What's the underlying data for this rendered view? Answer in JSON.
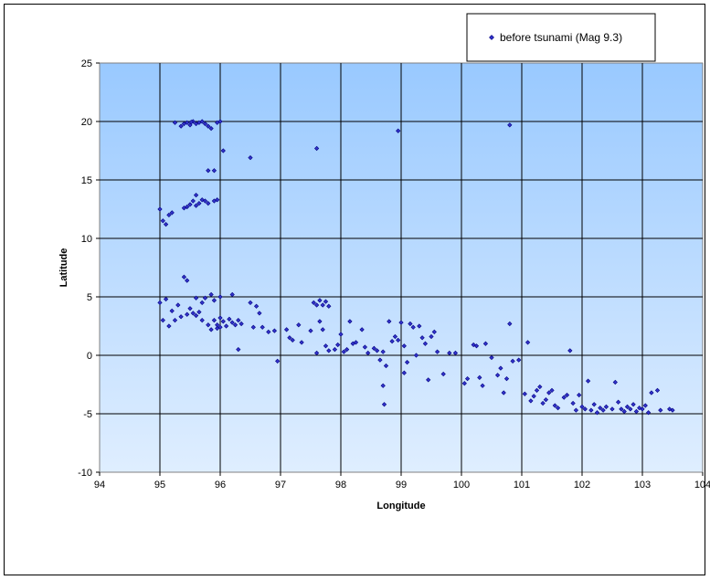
{
  "chart_data": {
    "type": "scatter",
    "title": "",
    "xlabel": "Longitude",
    "ylabel": "Latitude",
    "xlim": [
      94,
      104
    ],
    "ylim": [
      -10,
      25
    ],
    "x_ticks": [
      94,
      95,
      96,
      97,
      98,
      99,
      100,
      101,
      102,
      103,
      104
    ],
    "y_ticks": [
      -10,
      -5,
      0,
      5,
      10,
      15,
      20,
      25
    ],
    "grid": true,
    "legend_position": "top-right",
    "colors": {
      "plot_top": "#99c9ff",
      "plot_bottom": "#dfeeff",
      "marker_fill": "#3333cc",
      "marker_stroke": "#000080",
      "gridline": "#000000"
    },
    "series": [
      {
        "name": "before tsunami (Mag 9.3)",
        "marker": "diamond",
        "points": [
          [
            95.25,
            19.9
          ],
          [
            95.35,
            19.6
          ],
          [
            95.4,
            19.8
          ],
          [
            95.45,
            19.9
          ],
          [
            95.5,
            19.7
          ],
          [
            95.55,
            20.0
          ],
          [
            95.6,
            19.8
          ],
          [
            95.65,
            19.9
          ],
          [
            95.7,
            20.0
          ],
          [
            95.75,
            19.8
          ],
          [
            95.8,
            19.6
          ],
          [
            95.85,
            19.4
          ],
          [
            95.95,
            19.9
          ],
          [
            96.0,
            20.0
          ],
          [
            95.52,
            19.95
          ],
          [
            96.05,
            17.5
          ],
          [
            96.5,
            16.9
          ],
          [
            95.8,
            15.8
          ],
          [
            95.9,
            15.8
          ],
          [
            97.6,
            17.7
          ],
          [
            98.95,
            19.2
          ],
          [
            100.8,
            19.7
          ],
          [
            95.6,
            13.7
          ],
          [
            95.55,
            13.2
          ],
          [
            95.65,
            13.0
          ],
          [
            95.7,
            13.3
          ],
          [
            95.75,
            13.2
          ],
          [
            95.8,
            13.0
          ],
          [
            95.9,
            13.2
          ],
          [
            95.95,
            13.3
          ],
          [
            95.6,
            12.8
          ],
          [
            95.5,
            12.9
          ],
          [
            95.4,
            12.6
          ],
          [
            95.45,
            12.7
          ],
          [
            95.0,
            12.5
          ],
          [
            95.05,
            11.5
          ],
          [
            95.1,
            11.2
          ],
          [
            95.15,
            12.0
          ],
          [
            95.2,
            12.2
          ],
          [
            95.4,
            6.7
          ],
          [
            95.45,
            6.4
          ],
          [
            95.0,
            4.5
          ],
          [
            95.1,
            4.8
          ],
          [
            95.2,
            3.8
          ],
          [
            95.3,
            4.3
          ],
          [
            95.35,
            3.3
          ],
          [
            95.25,
            3.0
          ],
          [
            95.05,
            3.0
          ],
          [
            95.15,
            2.5
          ],
          [
            95.5,
            4.0
          ],
          [
            95.45,
            3.5
          ],
          [
            95.6,
            3.4
          ],
          [
            95.65,
            3.7
          ],
          [
            95.7,
            3.0
          ],
          [
            95.55,
            3.6
          ],
          [
            95.6,
            4.9
          ],
          [
            95.75,
            4.9
          ],
          [
            95.8,
            2.6
          ],
          [
            95.85,
            2.2
          ],
          [
            95.9,
            3.0
          ],
          [
            95.95,
            2.6
          ],
          [
            96.0,
            3.2
          ],
          [
            96.05,
            2.9
          ],
          [
            96.1,
            2.5
          ],
          [
            96.15,
            3.1
          ],
          [
            96.2,
            2.8
          ],
          [
            96.25,
            2.6
          ],
          [
            96.3,
            3.0
          ],
          [
            96.35,
            2.7
          ],
          [
            96.0,
            2.4
          ],
          [
            95.95,
            2.3
          ],
          [
            95.9,
            4.7
          ],
          [
            96.0,
            5.0
          ],
          [
            95.85,
            5.2
          ],
          [
            95.7,
            4.5
          ],
          [
            96.2,
            5.2
          ],
          [
            96.5,
            4.5
          ],
          [
            96.6,
            4.2
          ],
          [
            96.65,
            3.6
          ],
          [
            96.7,
            2.4
          ],
          [
            96.8,
            2.0
          ],
          [
            96.3,
            0.5
          ],
          [
            96.55,
            2.4
          ],
          [
            96.9,
            2.1
          ],
          [
            96.95,
            -0.5
          ],
          [
            97.1,
            2.2
          ],
          [
            97.15,
            1.5
          ],
          [
            97.2,
            1.3
          ],
          [
            97.3,
            2.6
          ],
          [
            97.35,
            1.1
          ],
          [
            97.5,
            2.1
          ],
          [
            97.55,
            4.5
          ],
          [
            97.6,
            4.3
          ],
          [
            97.65,
            4.7
          ],
          [
            97.7,
            4.3
          ],
          [
            97.75,
            4.6
          ],
          [
            97.8,
            4.2
          ],
          [
            97.6,
            0.2
          ],
          [
            97.65,
            2.9
          ],
          [
            97.7,
            2.2
          ],
          [
            97.75,
            0.8
          ],
          [
            97.8,
            0.4
          ],
          [
            97.9,
            0.5
          ],
          [
            97.95,
            0.9
          ],
          [
            98.0,
            1.8
          ],
          [
            98.05,
            0.3
          ],
          [
            98.1,
            0.5
          ],
          [
            98.15,
            2.9
          ],
          [
            98.2,
            1.0
          ],
          [
            98.25,
            1.1
          ],
          [
            98.35,
            2.2
          ],
          [
            98.4,
            0.7
          ],
          [
            98.45,
            0.2
          ],
          [
            98.55,
            0.6
          ],
          [
            98.6,
            0.4
          ],
          [
            98.65,
            -0.4
          ],
          [
            98.7,
            0.3
          ],
          [
            98.75,
            -0.9
          ],
          [
            98.7,
            -2.6
          ],
          [
            98.72,
            -4.2
          ],
          [
            98.8,
            2.9
          ],
          [
            98.85,
            1.2
          ],
          [
            98.9,
            1.6
          ],
          [
            98.95,
            1.3
          ],
          [
            99.0,
            2.8
          ],
          [
            99.05,
            0.8
          ],
          [
            99.1,
            -0.6
          ],
          [
            99.05,
            -1.5
          ],
          [
            99.15,
            2.7
          ],
          [
            99.2,
            2.4
          ],
          [
            99.25,
            0.0
          ],
          [
            99.3,
            2.5
          ],
          [
            99.35,
            1.5
          ],
          [
            99.4,
            1.0
          ],
          [
            99.45,
            -2.1
          ],
          [
            99.5,
            1.6
          ],
          [
            99.6,
            0.3
          ],
          [
            99.7,
            -1.6
          ],
          [
            99.8,
            0.2
          ],
          [
            99.9,
            0.2
          ],
          [
            99.55,
            2.0
          ],
          [
            100.05,
            -2.4
          ],
          [
            100.1,
            -2.0
          ],
          [
            100.2,
            0.9
          ],
          [
            100.25,
            0.8
          ],
          [
            100.3,
            -1.9
          ],
          [
            100.35,
            -2.6
          ],
          [
            100.4,
            1.0
          ],
          [
            100.5,
            -0.2
          ],
          [
            100.6,
            -1.7
          ],
          [
            100.65,
            -1.1
          ],
          [
            100.7,
            -3.2
          ],
          [
            100.75,
            -2.0
          ],
          [
            100.8,
            2.7
          ],
          [
            100.85,
            -0.5
          ],
          [
            100.95,
            -0.4
          ],
          [
            101.05,
            -3.3
          ],
          [
            101.1,
            1.1
          ],
          [
            101.15,
            -3.9
          ],
          [
            101.2,
            -3.5
          ],
          [
            101.25,
            -3.0
          ],
          [
            101.3,
            -2.7
          ],
          [
            101.35,
            -4.1
          ],
          [
            101.4,
            -3.8
          ],
          [
            101.45,
            -3.2
          ],
          [
            101.5,
            -3.0
          ],
          [
            101.55,
            -4.3
          ],
          [
            101.6,
            -4.5
          ],
          [
            101.7,
            -3.6
          ],
          [
            101.75,
            -3.4
          ],
          [
            101.8,
            0.4
          ],
          [
            101.85,
            -4.1
          ],
          [
            101.9,
            -4.7
          ],
          [
            101.95,
            -3.4
          ],
          [
            102.0,
            -4.4
          ],
          [
            102.05,
            -4.6
          ],
          [
            102.1,
            -2.2
          ],
          [
            102.15,
            -4.7
          ],
          [
            102.2,
            -4.2
          ],
          [
            102.25,
            -4.9
          ],
          [
            102.3,
            -4.5
          ],
          [
            102.35,
            -4.7
          ],
          [
            102.4,
            -4.4
          ],
          [
            102.5,
            -4.6
          ],
          [
            102.55,
            -2.3
          ],
          [
            102.6,
            -4.0
          ],
          [
            102.65,
            -4.6
          ],
          [
            102.7,
            -4.8
          ],
          [
            102.75,
            -4.4
          ],
          [
            102.8,
            -4.6
          ],
          [
            102.85,
            -4.2
          ],
          [
            102.9,
            -4.8
          ],
          [
            102.95,
            -4.5
          ],
          [
            103.0,
            -4.6
          ],
          [
            103.05,
            -4.3
          ],
          [
            103.1,
            -4.9
          ],
          [
            103.15,
            -3.2
          ],
          [
            103.25,
            -3.0
          ],
          [
            103.3,
            -4.7
          ],
          [
            103.45,
            -4.6
          ],
          [
            103.5,
            -4.7
          ]
        ]
      }
    ]
  }
}
